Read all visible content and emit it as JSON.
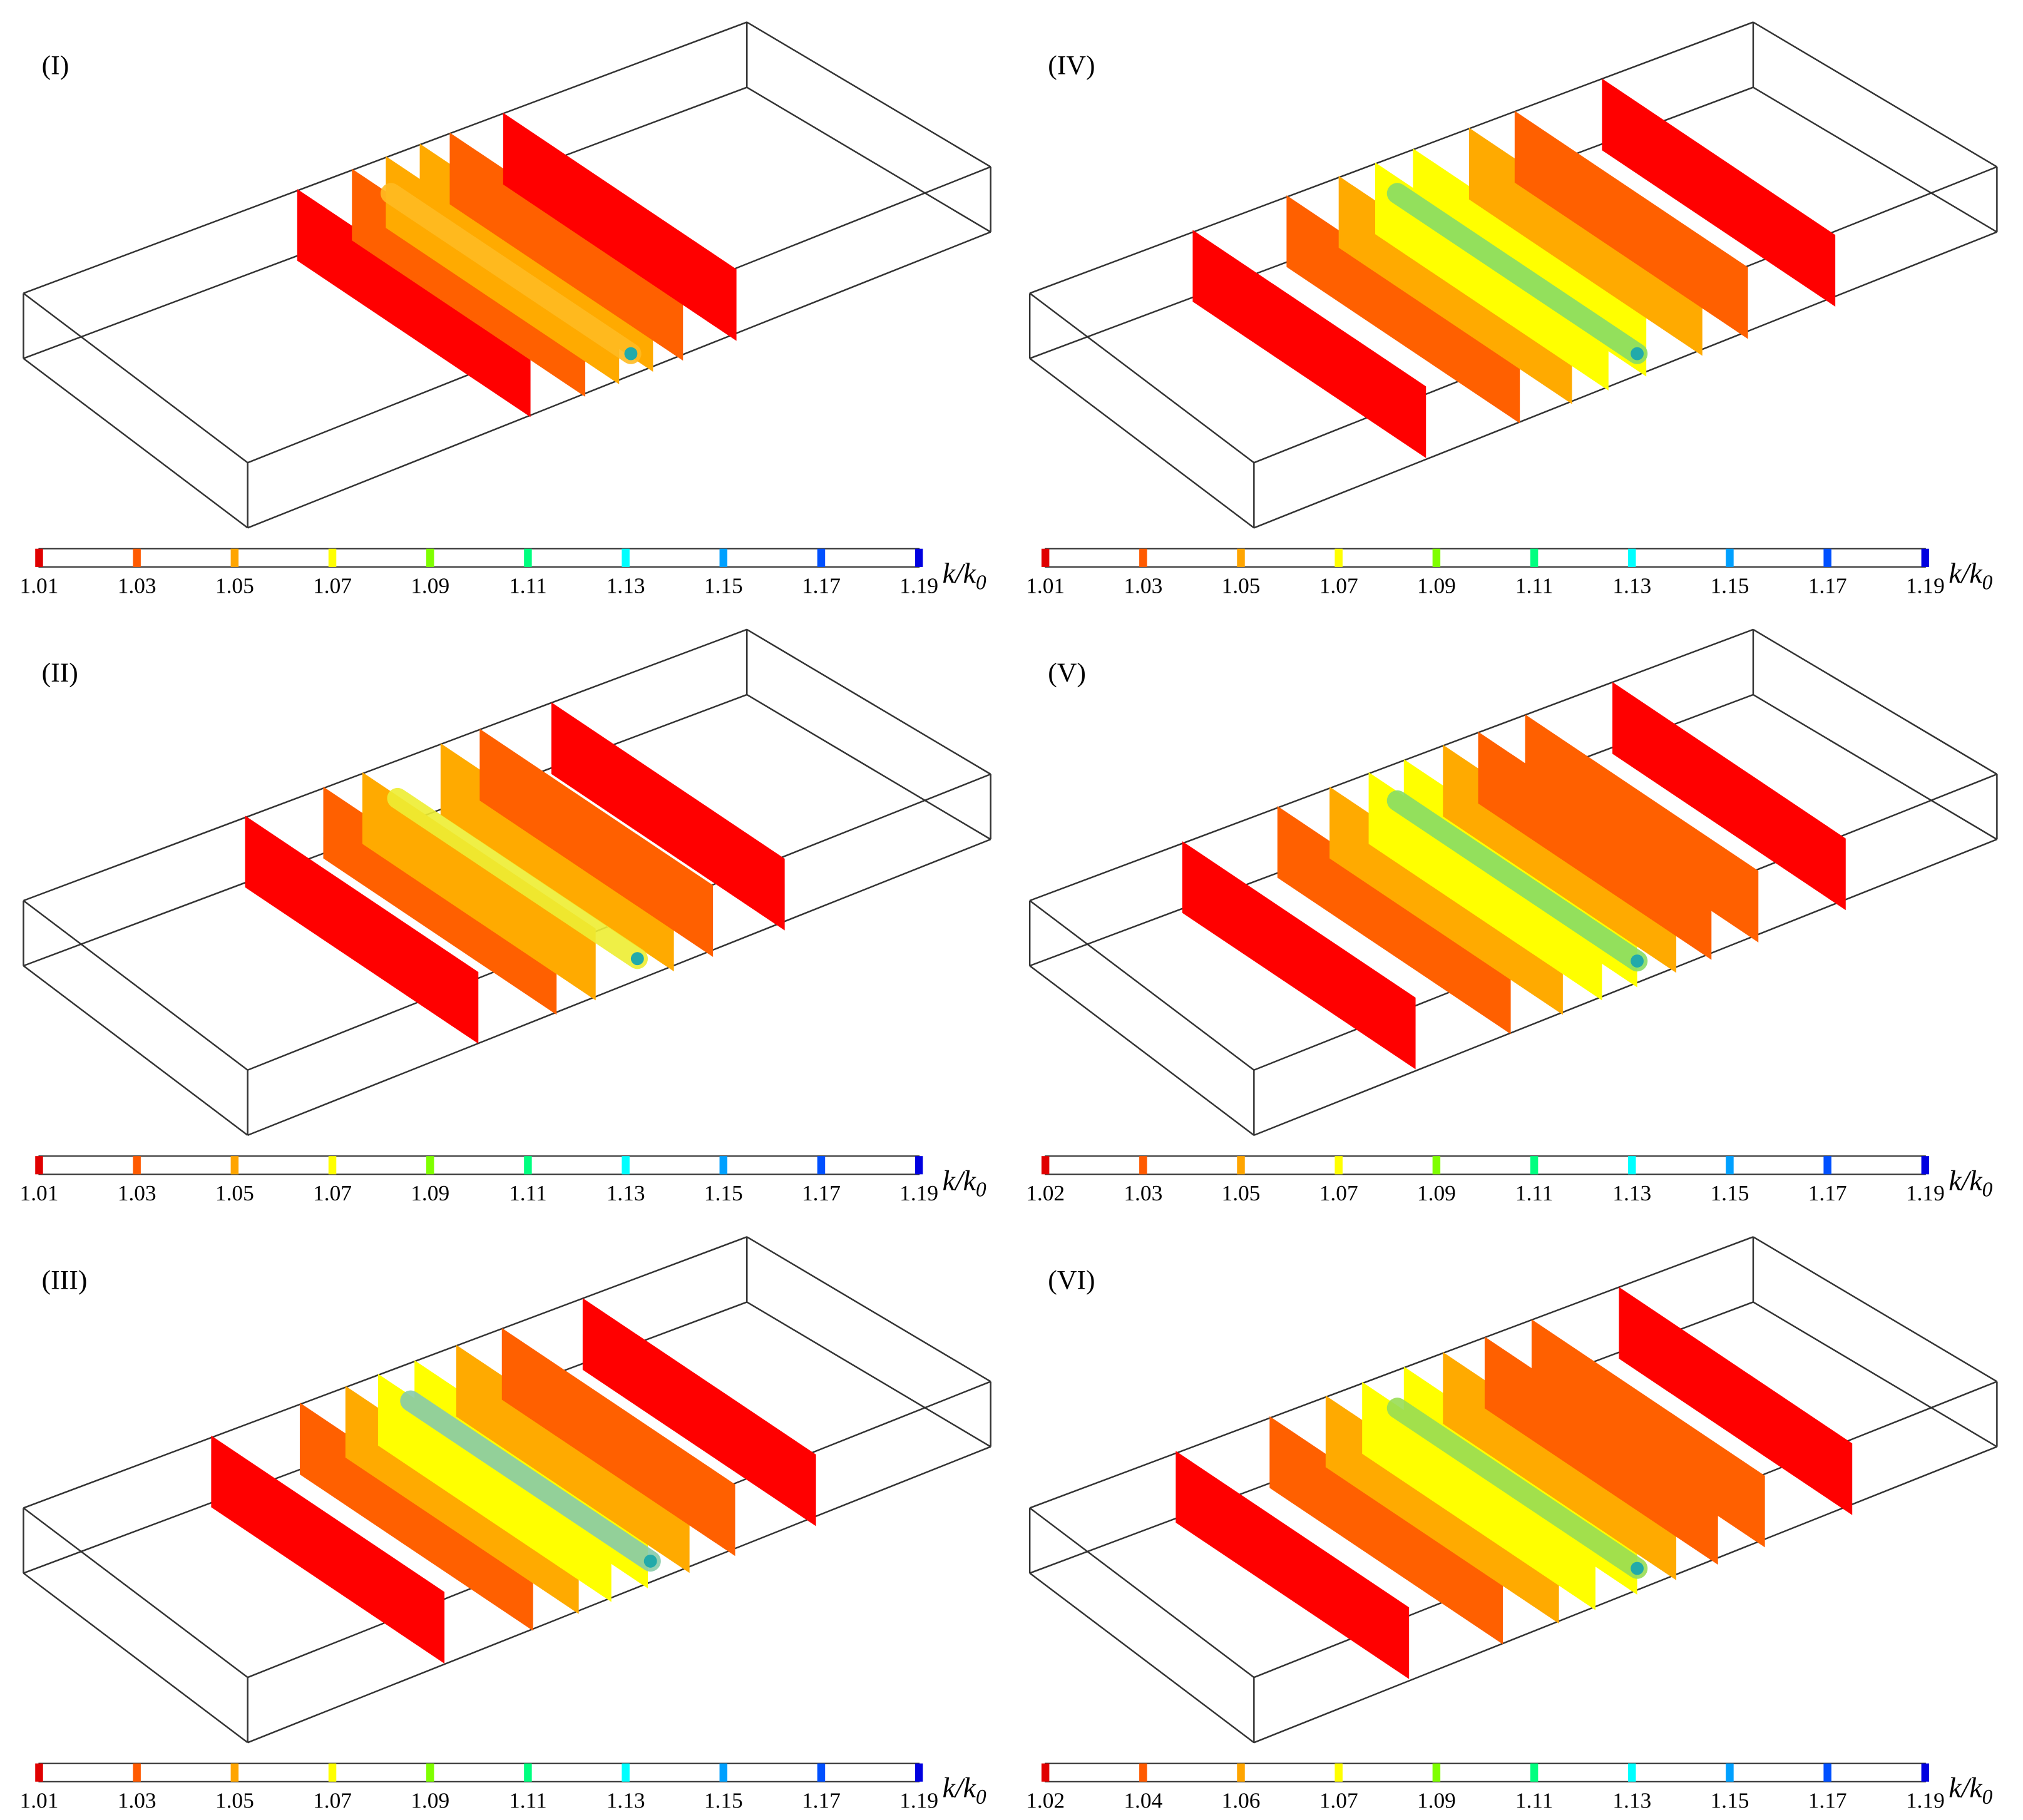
{
  "panels": [
    {
      "label": "(I)",
      "colorbar_ticks": [
        "1.01",
        "1.03",
        "1.05",
        "1.07",
        "1.09",
        "1.11",
        "1.13",
        "1.15",
        "1.17",
        "1.19"
      ]
    },
    {
      "label": "(IV)",
      "colorbar_ticks": [
        "1.01",
        "1.03",
        "1.05",
        "1.07",
        "1.09",
        "1.11",
        "1.13",
        "1.15",
        "1.17",
        "1.19"
      ]
    },
    {
      "label": "(II)",
      "colorbar_ticks": [
        "1.01",
        "1.03",
        "1.05",
        "1.07",
        "1.09",
        "1.11",
        "1.13",
        "1.15",
        "1.17",
        "1.19"
      ]
    },
    {
      "label": "(V)",
      "colorbar_ticks": [
        "1.02",
        "1.03",
        "1.05",
        "1.07",
        "1.09",
        "1.11",
        "1.13",
        "1.15",
        "1.17",
        "1.19"
      ]
    },
    {
      "label": "(III)",
      "colorbar_ticks": [
        "1.01",
        "1.03",
        "1.05",
        "1.07",
        "1.09",
        "1.11",
        "1.13",
        "1.15",
        "1.17",
        "1.19"
      ]
    },
    {
      "label": "(VI)",
      "colorbar_ticks": [
        "1.02",
        "1.04",
        "1.06",
        "1.07",
        "1.09",
        "1.11",
        "1.13",
        "1.15",
        "1.17",
        "1.19"
      ]
    }
  ],
  "colorbar_label": {
    "main": "k/k",
    "sub": "0"
  },
  "colorbar_colors": [
    "#e00000",
    "#ff5a00",
    "#ffa500",
    "#ffff00",
    "#7fff00",
    "#00ff7f",
    "#00ffff",
    "#00a0ff",
    "#0050ff",
    "#0000e0"
  ]
}
